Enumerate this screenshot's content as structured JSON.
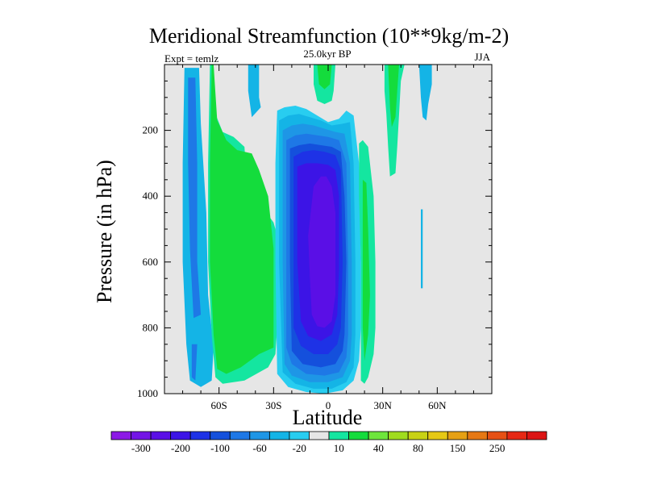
{
  "chart_data": {
    "type": "filled-contour",
    "title": "Meridional Streamfunction (10**9kg/m-2)",
    "subtitle_left": "Expt = temlz",
    "subtitle_center": "25.0kyr BP",
    "subtitle_right": "JJA",
    "xlabel": "Latitude",
    "ylabel": "Pressure (in hPa)",
    "xlim": [
      -90,
      90
    ],
    "ylim": [
      1000,
      0
    ],
    "x_ticks": [
      {
        "value": -60,
        "label": "60S"
      },
      {
        "value": -30,
        "label": "30S"
      },
      {
        "value": 0,
        "label": "0"
      },
      {
        "value": 30,
        "label": "30N"
      },
      {
        "value": 60,
        "label": "60N"
      }
    ],
    "y_ticks": [
      {
        "value": 200,
        "label": "200"
      },
      {
        "value": 400,
        "label": "400"
      },
      {
        "value": 600,
        "label": "600"
      },
      {
        "value": 800,
        "label": "800"
      },
      {
        "value": 1000,
        "label": "1000"
      }
    ],
    "background_color": "#e6e6e6",
    "colorbar": {
      "colors": [
        "#8c19e6",
        "#7314e6",
        "#5a0fe6",
        "#3c14e6",
        "#1e32e6",
        "#1450dc",
        "#1e78e6",
        "#1e96e6",
        "#14b4e6",
        "#28cdf0",
        "#e6e6e6",
        "#14e6a0",
        "#14dc3c",
        "#6ee63c",
        "#a0dc1e",
        "#c8d214",
        "#e6c814",
        "#e6a014",
        "#e67814",
        "#e65014",
        "#e62814",
        "#dc1414"
      ],
      "labels": [
        {
          "label": "-300",
          "index": 1
        },
        {
          "label": "-200",
          "index": 3
        },
        {
          "label": "-100",
          "index": 5
        },
        {
          "label": "-60",
          "index": 7
        },
        {
          "label": "-20",
          "index": 9
        },
        {
          "label": "10",
          "index": 11
        },
        {
          "label": "40",
          "index": 13
        },
        {
          "label": "80",
          "index": 15
        },
        {
          "label": "150",
          "index": 17
        },
        {
          "label": "250",
          "index": 19
        }
      ]
    },
    "regions": [
      {
        "name": "sh-outer-cyan",
        "color": "#14b4e6",
        "points": [
          [
            -79,
            10
          ],
          [
            -71,
            10
          ],
          [
            -70,
            180
          ],
          [
            -67,
            450
          ],
          [
            -66,
            700
          ],
          [
            -63,
            860
          ],
          [
            -64,
            960
          ],
          [
            -70,
            980
          ],
          [
            -76,
            960
          ],
          [
            -78,
            850
          ],
          [
            -80,
            600
          ],
          [
            -80,
            300
          ]
        ]
      },
      {
        "name": "sh-outer-blue",
        "color": "#1e78e6",
        "points": [
          [
            -77,
            40
          ],
          [
            -73,
            40
          ],
          [
            -72,
            300
          ],
          [
            -72,
            600
          ],
          [
            -70,
            760
          ],
          [
            -74,
            770
          ],
          [
            -76,
            560
          ],
          [
            -77,
            300
          ]
        ]
      },
      {
        "name": "sh-outer-blue-lower",
        "color": "#1e78e6",
        "points": [
          [
            -75,
            850
          ],
          [
            -72,
            850
          ],
          [
            -73,
            960
          ],
          [
            -75,
            950
          ]
        ]
      },
      {
        "name": "sh-green-cyan-edge",
        "color": "#14e6a0",
        "points": [
          [
            -65,
            0
          ],
          [
            -63,
            0
          ],
          [
            -62,
            150
          ],
          [
            -58,
            205
          ],
          [
            -52,
            220
          ],
          [
            -46,
            250
          ],
          [
            -45,
            330
          ],
          [
            -38,
            420
          ],
          [
            -30,
            480
          ],
          [
            -28,
            520
          ],
          [
            -28,
            800
          ],
          [
            -29,
            880
          ],
          [
            -33,
            920
          ],
          [
            -46,
            960
          ],
          [
            -58,
            970
          ],
          [
            -62,
            950
          ],
          [
            -64,
            820
          ],
          [
            -66,
            600
          ],
          [
            -66,
            300
          ]
        ]
      },
      {
        "name": "sh-green",
        "color": "#14dc3c",
        "points": [
          [
            -64,
            0
          ],
          [
            -63,
            0
          ],
          [
            -61,
            170
          ],
          [
            -56,
            230
          ],
          [
            -50,
            260
          ],
          [
            -42,
            270
          ],
          [
            -38,
            320
          ],
          [
            -33,
            400
          ],
          [
            -30,
            560
          ],
          [
            -30,
            780
          ],
          [
            -30,
            860
          ],
          [
            -38,
            880
          ],
          [
            -48,
            920
          ],
          [
            -56,
            940
          ],
          [
            -61,
            925
          ],
          [
            -63,
            820
          ],
          [
            -65,
            600
          ],
          [
            -65,
            300
          ]
        ]
      },
      {
        "name": "sh-upper-cyan",
        "color": "#14b4e6",
        "points": [
          [
            -44,
            0
          ],
          [
            -38,
            0
          ],
          [
            -38,
            100
          ],
          [
            -37,
            130
          ],
          [
            -42,
            160
          ],
          [
            -44,
            80
          ]
        ]
      },
      {
        "name": "ferrel-cyan-1",
        "color": "#28cdf0",
        "points": [
          [
            -28,
            140
          ],
          [
            -24,
            130
          ],
          [
            -18,
            125
          ],
          [
            -12,
            135
          ],
          [
            -6,
            155
          ],
          [
            0,
            175
          ],
          [
            6,
            165
          ],
          [
            10,
            140
          ],
          [
            14,
            155
          ],
          [
            17,
            300
          ],
          [
            18,
            600
          ],
          [
            18,
            800
          ],
          [
            17,
            900
          ],
          [
            14,
            960
          ],
          [
            8,
            990
          ],
          [
            -2,
            1000
          ],
          [
            -12,
            995
          ],
          [
            -22,
            980
          ],
          [
            -28,
            940
          ],
          [
            -29,
            600
          ],
          [
            -29,
            300
          ]
        ]
      },
      {
        "name": "ferrel-1",
        "color": "#14b4e6",
        "points": [
          [
            -27,
            170
          ],
          [
            -22,
            155
          ],
          [
            -16,
            150
          ],
          [
            -10,
            160
          ],
          [
            -4,
            170
          ],
          [
            2,
            185
          ],
          [
            8,
            180
          ],
          [
            12,
            175
          ],
          [
            14,
            300
          ],
          [
            15,
            600
          ],
          [
            15,
            820
          ],
          [
            14,
            920
          ],
          [
            10,
            965
          ],
          [
            2,
            985
          ],
          [
            -8,
            985
          ],
          [
            -18,
            970
          ],
          [
            -25,
            935
          ],
          [
            -27,
            600
          ],
          [
            -27,
            300
          ]
        ]
      },
      {
        "name": "ferrel-2",
        "color": "#1e96e6",
        "points": [
          [
            -25,
            200
          ],
          [
            -20,
            185
          ],
          [
            -14,
            180
          ],
          [
            -8,
            185
          ],
          [
            -2,
            195
          ],
          [
            4,
            205
          ],
          [
            9,
            210
          ],
          [
            12,
            300
          ],
          [
            13,
            600
          ],
          [
            13,
            820
          ],
          [
            12,
            900
          ],
          [
            8,
            950
          ],
          [
            0,
            965
          ],
          [
            -10,
            965
          ],
          [
            -20,
            945
          ],
          [
            -24,
            910
          ],
          [
            -25,
            600
          ],
          [
            -25,
            300
          ]
        ]
      },
      {
        "name": "ferrel-3",
        "color": "#1e78e6",
        "points": [
          [
            -23,
            230
          ],
          [
            -18,
            215
          ],
          [
            -12,
            210
          ],
          [
            -6,
            215
          ],
          [
            0,
            220
          ],
          [
            6,
            230
          ],
          [
            10,
            300
          ],
          [
            11,
            600
          ],
          [
            11,
            820
          ],
          [
            10,
            890
          ],
          [
            6,
            935
          ],
          [
            -2,
            945
          ],
          [
            -12,
            940
          ],
          [
            -20,
            910
          ],
          [
            -23,
            860
          ],
          [
            -23,
            600
          ],
          [
            -23,
            320
          ]
        ]
      },
      {
        "name": "ferrel-4",
        "color": "#1450dc",
        "points": [
          [
            -21,
            255
          ],
          [
            -16,
            245
          ],
          [
            -10,
            240
          ],
          [
            -4,
            245
          ],
          [
            2,
            250
          ],
          [
            7,
            265
          ],
          [
            9,
            400
          ],
          [
            10,
            600
          ],
          [
            9,
            820
          ],
          [
            8,
            870
          ],
          [
            4,
            910
          ],
          [
            -4,
            920
          ],
          [
            -14,
            910
          ],
          [
            -20,
            870
          ],
          [
            -21,
            600
          ],
          [
            -21,
            350
          ]
        ]
      },
      {
        "name": "ferrel-5",
        "color": "#1e32e6",
        "points": [
          [
            -19,
            280
          ],
          [
            -14,
            265
          ],
          [
            -8,
            260
          ],
          [
            -2,
            265
          ],
          [
            4,
            275
          ],
          [
            7,
            320
          ],
          [
            8,
            600
          ],
          [
            7,
            800
          ],
          [
            5,
            850
          ],
          [
            0,
            880
          ],
          [
            -8,
            880
          ],
          [
            -15,
            855
          ],
          [
            -19,
            800
          ],
          [
            -19,
            600
          ],
          [
            -19,
            380
          ]
        ]
      },
      {
        "name": "ferrel-6",
        "color": "#3c14e6",
        "points": [
          [
            -17,
            310
          ],
          [
            -12,
            300
          ],
          [
            -6,
            300
          ],
          [
            0,
            305
          ],
          [
            4,
            320
          ],
          [
            6,
            400
          ],
          [
            6,
            620
          ],
          [
            5,
            760
          ],
          [
            2,
            820
          ],
          [
            -4,
            840
          ],
          [
            -11,
            825
          ],
          [
            -15,
            780
          ],
          [
            -17,
            600
          ],
          [
            -17,
            400
          ]
        ]
      },
      {
        "name": "ferrel-core",
        "color": "#5a0fe6",
        "points": [
          [
            -8,
            370
          ],
          [
            -4,
            340
          ],
          [
            -1,
            340
          ],
          [
            2,
            370
          ],
          [
            4,
            450
          ],
          [
            4,
            700
          ],
          [
            2,
            780
          ],
          [
            -2,
            800
          ],
          [
            -6,
            795
          ],
          [
            -9,
            760
          ],
          [
            -10,
            650
          ],
          [
            -11,
            520
          ]
        ]
      },
      {
        "name": "tropic-top-green",
        "color": "#14e6a0",
        "points": [
          [
            -8,
            0
          ],
          [
            4,
            0
          ],
          [
            3,
            80
          ],
          [
            2,
            110
          ],
          [
            -2,
            120
          ],
          [
            -6,
            110
          ],
          [
            -8,
            60
          ]
        ]
      },
      {
        "name": "tropic-top-green-inner",
        "color": "#14dc3c",
        "points": [
          [
            -6,
            0
          ],
          [
            2,
            0
          ],
          [
            1,
            60
          ],
          [
            -2,
            75
          ],
          [
            -5,
            60
          ]
        ]
      },
      {
        "name": "nh-green-outer",
        "color": "#14e6a0",
        "points": [
          [
            17,
            240
          ],
          [
            19,
            230
          ],
          [
            22,
            250
          ],
          [
            25,
            400
          ],
          [
            26,
            600
          ],
          [
            26,
            800
          ],
          [
            25,
            880
          ],
          [
            22,
            950
          ],
          [
            20,
            970
          ],
          [
            18,
            960
          ],
          [
            18,
            800
          ],
          [
            18,
            600
          ],
          [
            17,
            400
          ]
        ]
      },
      {
        "name": "nh-green-inner",
        "color": "#14dc3c",
        "points": [
          [
            19,
            350
          ],
          [
            21,
            360
          ],
          [
            22,
            500
          ],
          [
            23,
            700
          ],
          [
            22,
            820
          ],
          [
            20,
            900
          ],
          [
            19,
            800
          ],
          [
            19,
            600
          ]
        ]
      },
      {
        "name": "nh-upper-green",
        "color": "#14e6a0",
        "points": [
          [
            31,
            0
          ],
          [
            42,
            0
          ],
          [
            40,
            50
          ],
          [
            39,
            150
          ],
          [
            38,
            250
          ],
          [
            37,
            330
          ],
          [
            34,
            340
          ],
          [
            33,
            250
          ],
          [
            32,
            150
          ],
          [
            31,
            80
          ]
        ]
      },
      {
        "name": "nh-upper-green-inner",
        "color": "#14dc3c",
        "points": [
          [
            33,
            0
          ],
          [
            39,
            0
          ],
          [
            38,
            80
          ],
          [
            37,
            160
          ],
          [
            35,
            190
          ],
          [
            34,
            130
          ]
        ]
      },
      {
        "name": "nh-upper-cyan",
        "color": "#14b4e6",
        "points": [
          [
            50,
            0
          ],
          [
            57,
            0
          ],
          [
            57,
            60
          ],
          [
            55,
            120
          ],
          [
            54,
            170
          ],
          [
            52,
            160
          ],
          [
            51,
            100
          ]
        ]
      },
      {
        "name": "nh-thin-cyan",
        "color": "#14b4e6",
        "points": [
          [
            51,
            440
          ],
          [
            52,
            440
          ],
          [
            52,
            520
          ],
          [
            52,
            620
          ],
          [
            52,
            680
          ],
          [
            51,
            680
          ],
          [
            51,
            600
          ],
          [
            51,
            500
          ]
        ]
      }
    ]
  }
}
